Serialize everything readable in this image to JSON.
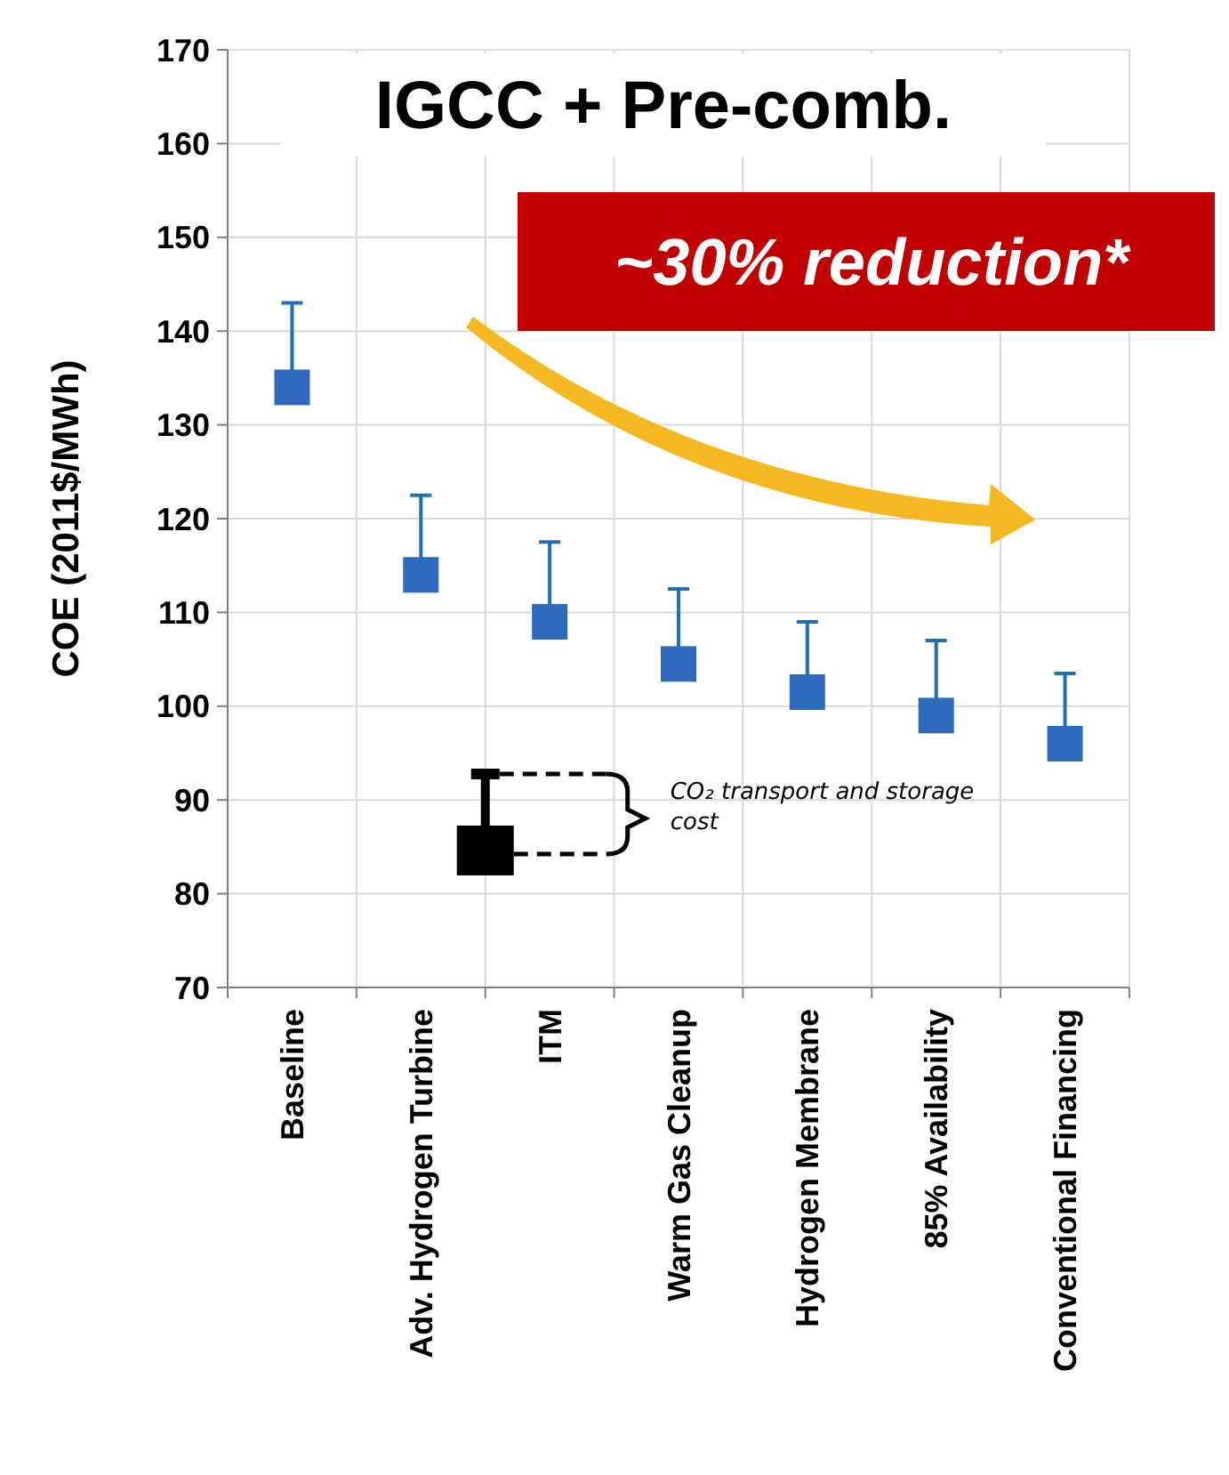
{
  "chart_data": {
    "type": "scatter",
    "title": "IGCC + Pre-comb.",
    "ylabel": "COE (2011$/MWh)",
    "categories": [
      "Baseline",
      "Adv. Hydrogen Turbine",
      "ITM",
      "Warm Gas Cleanup",
      "Hydrogen Membrane",
      "85% Availability",
      "Conventional Financing"
    ],
    "series": [
      {
        "color": "#2f6bbd",
        "values": [
          134,
          114,
          109,
          104.5,
          101.5,
          99,
          96
        ],
        "errors": [
          [
            134,
            143
          ],
          [
            114,
            122.5
          ],
          [
            109,
            117.5
          ],
          [
            104.5,
            112.5
          ],
          [
            101.5,
            109
          ],
          [
            99,
            107
          ],
          [
            96,
            103.5
          ]
        ]
      }
    ],
    "ylim": [
      70,
      170
    ],
    "yticks": [
      70,
      80,
      90,
      100,
      110,
      120,
      130,
      140,
      150,
      160,
      170
    ],
    "grid": true,
    "marker": "square",
    "annotations": [
      "~30% reduction*",
      "CO₂ transport and storage cost"
    ]
  }
}
